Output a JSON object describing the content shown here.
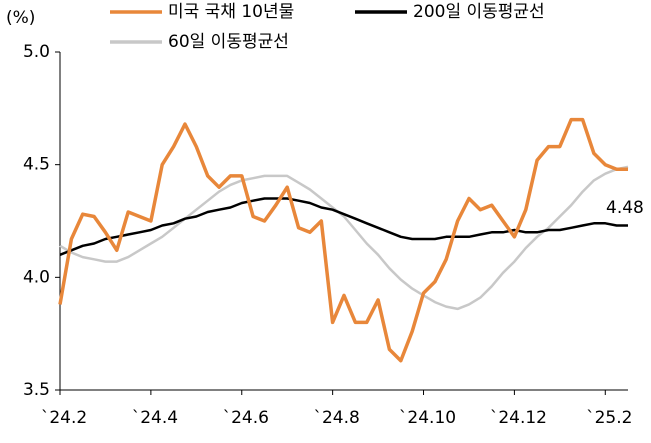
{
  "chart_data": {
    "type": "line",
    "y_label": "(%)",
    "annotation": "4.48",
    "x": [
      0,
      0.25,
      0.5,
      0.75,
      1,
      1.25,
      1.5,
      1.75,
      2,
      2.25,
      2.5,
      2.75,
      3,
      3.25,
      3.5,
      3.75,
      4,
      4.25,
      4.5,
      4.75,
      5,
      5.25,
      5.5,
      5.75,
      6,
      6.25,
      6.5,
      6.75,
      7,
      7.25,
      7.5,
      7.75,
      8,
      8.25,
      8.5,
      8.75,
      9,
      9.25,
      9.5,
      9.75,
      10,
      10.25,
      10.5,
      10.75,
      11,
      11.25,
      11.5,
      11.75,
      12,
      12.25,
      12.5
    ],
    "series": [
      {
        "name": "미국 국채 10년물",
        "color": "#e8873a",
        "values": [
          3.88,
          4.17,
          4.28,
          4.27,
          4.2,
          4.12,
          4.29,
          4.27,
          4.25,
          4.5,
          4.58,
          4.68,
          4.58,
          4.45,
          4.4,
          4.45,
          4.45,
          4.27,
          4.25,
          4.32,
          4.4,
          4.22,
          4.2,
          4.25,
          3.8,
          3.92,
          3.8,
          3.8,
          3.9,
          3.68,
          3.63,
          3.76,
          3.93,
          3.98,
          4.08,
          4.25,
          4.35,
          4.3,
          4.32,
          4.25,
          4.18,
          4.3,
          4.52,
          4.58,
          4.58,
          4.7,
          4.7,
          4.55,
          4.5,
          4.48,
          4.48
        ]
      },
      {
        "name": "200일 이동평균선",
        "color": "#000000",
        "values": [
          4.1,
          4.12,
          4.14,
          4.15,
          4.17,
          4.18,
          4.19,
          4.2,
          4.21,
          4.23,
          4.24,
          4.26,
          4.27,
          4.29,
          4.3,
          4.31,
          4.33,
          4.34,
          4.35,
          4.35,
          4.35,
          4.34,
          4.33,
          4.31,
          4.3,
          4.28,
          4.26,
          4.24,
          4.22,
          4.2,
          4.18,
          4.17,
          4.17,
          4.17,
          4.18,
          4.18,
          4.18,
          4.19,
          4.2,
          4.2,
          4.21,
          4.2,
          4.2,
          4.21,
          4.21,
          4.22,
          4.23,
          4.24,
          4.24,
          4.23,
          4.23
        ]
      },
      {
        "name": "60일 이동평균선",
        "color": "#c8c8c8",
        "values": [
          4.14,
          4.11,
          4.09,
          4.08,
          4.07,
          4.07,
          4.09,
          4.12,
          4.15,
          4.18,
          4.22,
          4.26,
          4.3,
          4.34,
          4.38,
          4.41,
          4.43,
          4.44,
          4.45,
          4.45,
          4.45,
          4.42,
          4.39,
          4.35,
          4.31,
          4.27,
          4.21,
          4.15,
          4.1,
          4.04,
          3.99,
          3.95,
          3.92,
          3.89,
          3.87,
          3.86,
          3.88,
          3.91,
          3.96,
          4.02,
          4.07,
          4.13,
          4.18,
          4.22,
          4.27,
          4.32,
          4.38,
          4.43,
          4.46,
          4.48,
          4.49
        ]
      }
    ],
    "xlim": [
      0,
      12.5
    ],
    "xticks": [
      {
        "value": 0,
        "label": "`24.2"
      },
      {
        "value": 2,
        "label": "`24.4"
      },
      {
        "value": 4,
        "label": "`24.6"
      },
      {
        "value": 6,
        "label": "`24.8"
      },
      {
        "value": 8,
        "label": "`24.10"
      },
      {
        "value": 10,
        "label": "`24.12"
      },
      {
        "value": 12,
        "label": "`25.2"
      }
    ],
    "ylim": [
      3.5,
      5.0
    ],
    "yticks": [
      3.5,
      {
        "value": 4,
        "label": "4.0"
      },
      4.5,
      {
        "value": 5,
        "label": "5.0"
      }
    ]
  }
}
